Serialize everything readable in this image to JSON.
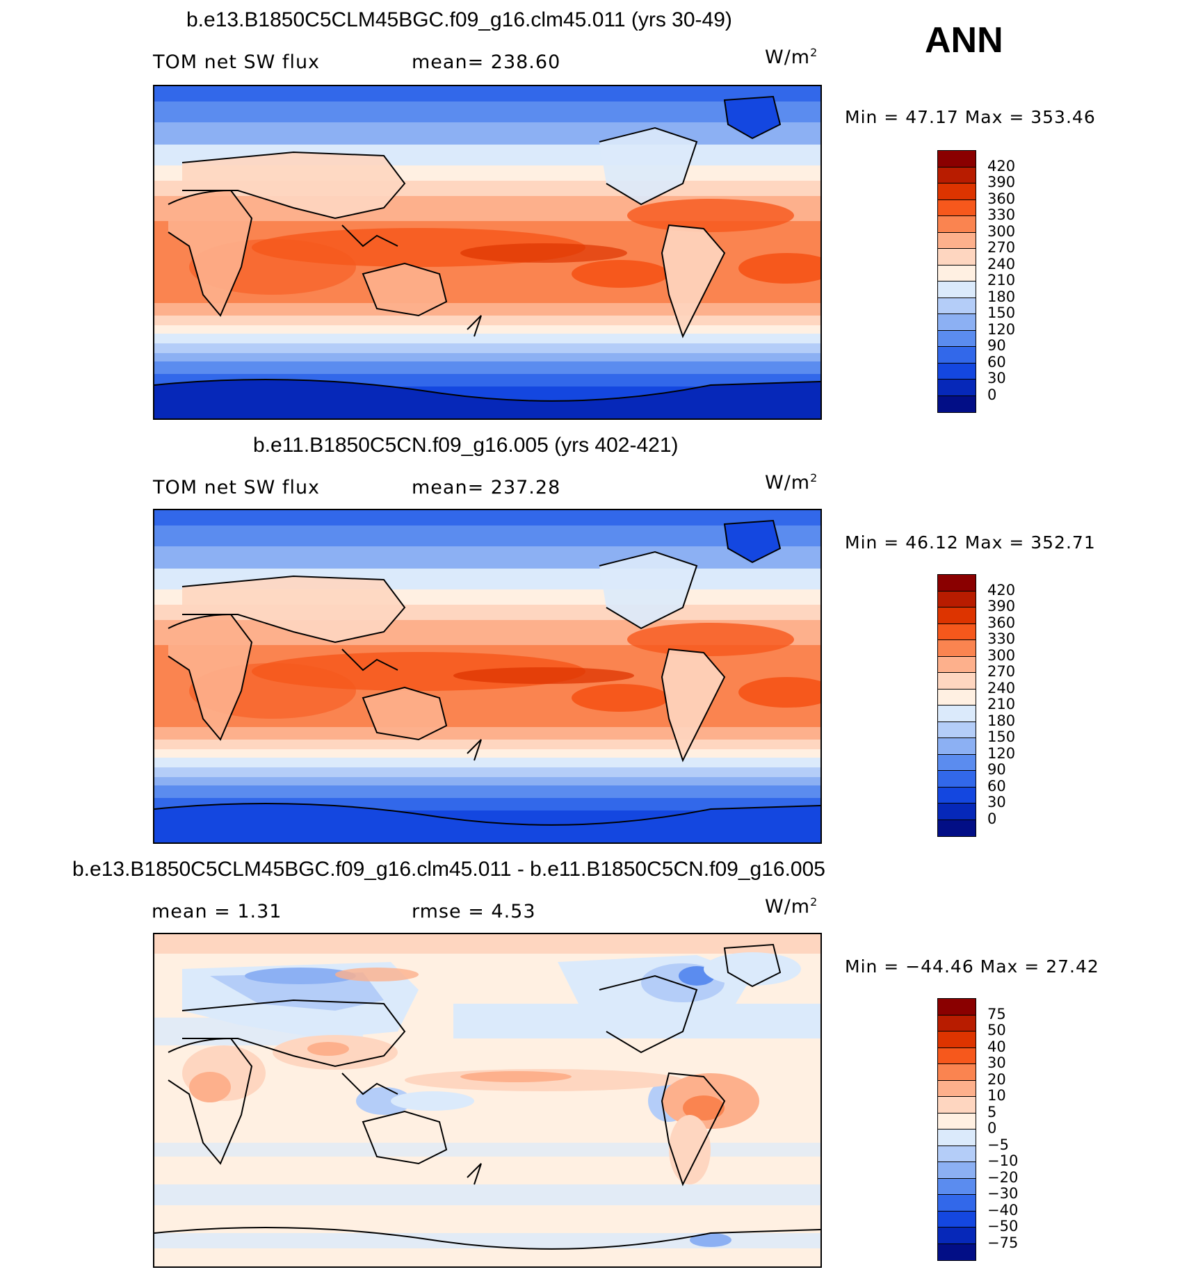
{
  "season": "ANN",
  "units_base": "W/m",
  "units_sup": "2",
  "panels": [
    {
      "title": "b.e13.B1850C5CLM45BGC.f09_g16.clm45.011 (yrs 30-49)",
      "left_label": "TOM net SW flux",
      "mid_label": "mean=  238.60",
      "stats": "Min  =    47.17  Max  =  353.46",
      "colorbar": {
        "labels": [
          "420",
          "390",
          "360",
          "330",
          "300",
          "270",
          "240",
          "210",
          "180",
          "150",
          "120",
          "90",
          "60",
          "30",
          "0"
        ],
        "colors": [
          "#8a0000",
          "#b81c00",
          "#dd3400",
          "#f6581c",
          "#fa8450",
          "#fdb08c",
          "#fed6c0",
          "#fff0e2",
          "#dbeafb",
          "#b4cdf8",
          "#8cb0f3",
          "#5b8cef",
          "#3268ea",
          "#1447e0",
          "#0628b9",
          "#020e86"
        ]
      }
    },
    {
      "title": "b.e11.B1850C5CN.f09_g16.005 (yrs 402-421)",
      "left_label": "TOM net SW flux",
      "mid_label": "mean=  237.28",
      "stats": "Min  =    46.12  Max  =  352.71",
      "colorbar": {
        "labels": [
          "420",
          "390",
          "360",
          "330",
          "300",
          "270",
          "240",
          "210",
          "180",
          "150",
          "120",
          "90",
          "60",
          "30",
          "0"
        ],
        "colors": [
          "#8a0000",
          "#b81c00",
          "#dd3400",
          "#f6581c",
          "#fa8450",
          "#fdb08c",
          "#fed6c0",
          "#fff0e2",
          "#dbeafb",
          "#b4cdf8",
          "#8cb0f3",
          "#5b8cef",
          "#3268ea",
          "#1447e0",
          "#0628b9",
          "#020e86"
        ]
      }
    },
    {
      "title": "b.e13.B1850C5CLM45BGC.f09_g16.clm45.011 - b.e11.B1850C5CN.f09_g16.005",
      "left_label": "mean  =      1.31",
      "mid_label": "rmse  =      4.53",
      "stats": "Min  = −44.46  Max  =    27.42",
      "colorbar": {
        "labels": [
          "75",
          "50",
          "40",
          "30",
          "20",
          "10",
          "5",
          "0",
          "−5",
          "−10",
          "−20",
          "−30",
          "−40",
          "−50",
          "−75"
        ],
        "colors": [
          "#8a0000",
          "#b81c00",
          "#dd3400",
          "#f6581c",
          "#fa8450",
          "#fdb08c",
          "#fed6c0",
          "#fff0e2",
          "#dbeafb",
          "#b4cdf8",
          "#8cb0f3",
          "#5b8cef",
          "#3268ea",
          "#1447e0",
          "#0628b9",
          "#020e86"
        ]
      }
    }
  ]
}
